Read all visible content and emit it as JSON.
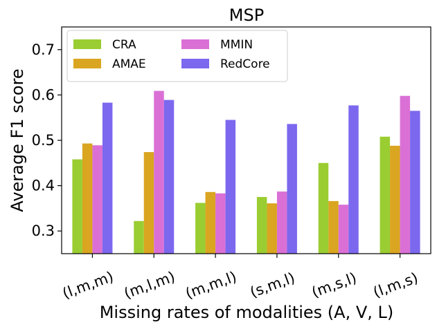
{
  "chart_data": {
    "type": "bar",
    "title": "MSP",
    "xlabel": "Missing rates of modalities (A, V, L)",
    "ylabel": "Average F1 score",
    "ylim": [
      0.25,
      0.75
    ],
    "yticks": [
      0.3,
      0.4,
      0.5,
      0.6,
      0.7
    ],
    "ytick_labels": [
      "0.3",
      "0.4",
      "0.5",
      "0.6",
      "0.7"
    ],
    "grid": false,
    "legend_position": "top-left",
    "categories": [
      "(l,m,m)",
      "(m,l,m)",
      "(m,m,l)",
      "(s,m,l)",
      "(m,s,l)",
      "(l,m,s)"
    ],
    "series": [
      {
        "name": "CRA",
        "color": "#9acd32",
        "values": [
          0.458,
          0.322,
          0.362,
          0.375,
          0.45,
          0.508
        ]
      },
      {
        "name": "AMAE",
        "color": "#daa520",
        "values": [
          0.493,
          0.474,
          0.386,
          0.361,
          0.366,
          0.488
        ]
      },
      {
        "name": "MMIN",
        "color": "#da70d6",
        "values": [
          0.489,
          0.609,
          0.383,
          0.387,
          0.358,
          0.598
        ]
      },
      {
        "name": "RedCore",
        "color": "#7b68ee",
        "values": [
          0.583,
          0.589,
          0.545,
          0.536,
          0.577,
          0.565
        ]
      }
    ]
  }
}
